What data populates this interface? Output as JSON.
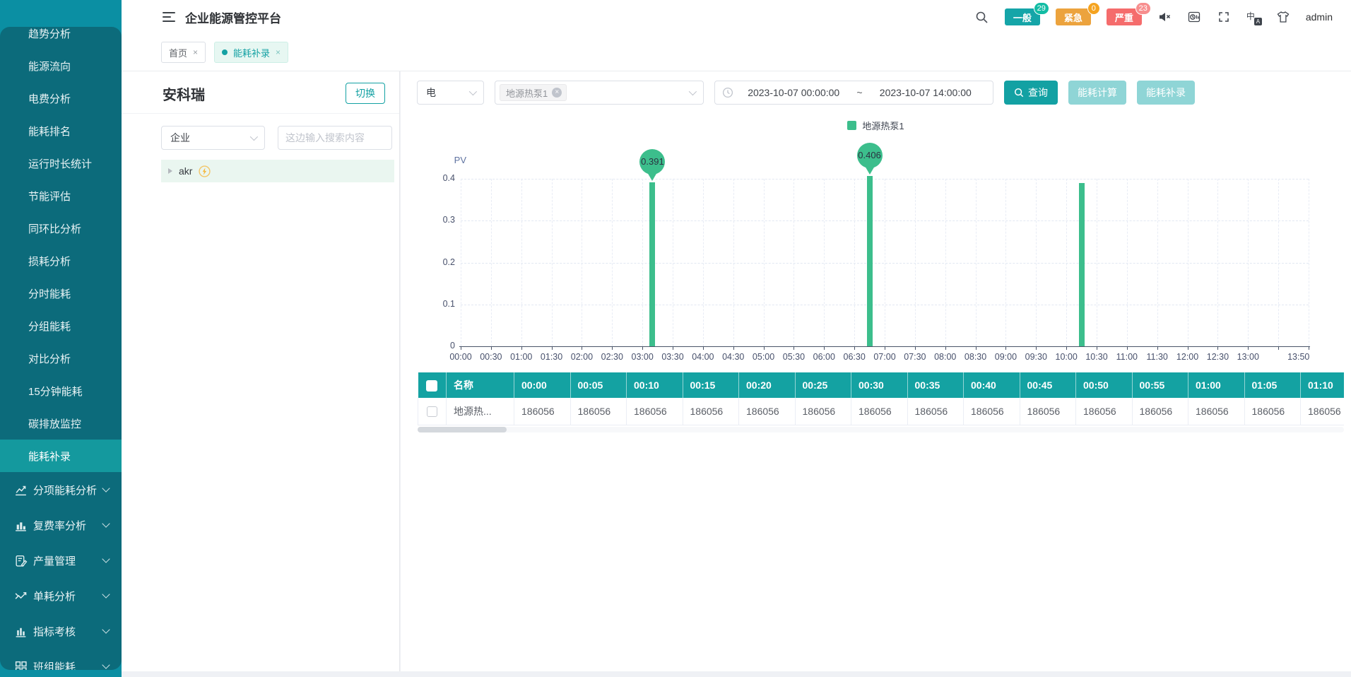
{
  "app": {
    "title": "企业能源管控平台",
    "user": "admin"
  },
  "header": {
    "badges": [
      {
        "label": "一般",
        "count": "29",
        "bg": "#15A5A8",
        "badge_bg": "#12BCA4"
      },
      {
        "label": "紧急",
        "count": "0",
        "bg": "#ECA33D",
        "badge_bg": "#F5A31F"
      },
      {
        "label": "严重",
        "count": "23",
        "bg": "#F56C6C",
        "badge_bg": "#F78E8E"
      }
    ]
  },
  "breadcrumb": {
    "tabs": [
      {
        "label": "首页",
        "active": false
      },
      {
        "label": "能耗补录",
        "active": true
      }
    ]
  },
  "sidebar": {
    "items": [
      {
        "label": "趋势分析"
      },
      {
        "label": "能源流向"
      },
      {
        "label": "电费分析"
      },
      {
        "label": "能耗排名"
      },
      {
        "label": "运行时长统计"
      },
      {
        "label": "节能评估"
      },
      {
        "label": "同环比分析"
      },
      {
        "label": "损耗分析"
      },
      {
        "label": "分时能耗"
      },
      {
        "label": "分组能耗"
      },
      {
        "label": "对比分析"
      },
      {
        "label": "15分钟能耗"
      },
      {
        "label": "碳排放监控"
      },
      {
        "label": "能耗补录",
        "active": true
      }
    ],
    "groups": [
      {
        "label": "分项能耗分析",
        "icon": "line-chart-icon"
      },
      {
        "label": "复费率分析",
        "icon": "bar-chart-icon"
      },
      {
        "label": "产量管理",
        "icon": "clipboard-icon"
      },
      {
        "label": "单耗分析",
        "icon": "scatter-icon"
      },
      {
        "label": "指标考核",
        "icon": "column-chart-icon"
      },
      {
        "label": "班组能耗",
        "icon": "grid-icon"
      }
    ]
  },
  "panel": {
    "title": "安科瑞",
    "switch_label": "切换",
    "type_select_value": "企业",
    "search_placeholder": "这边输入搜索内容",
    "tree_item_label": "akr"
  },
  "filters": {
    "energy_type_value": "电",
    "device_tag": "地源热泵1",
    "date_start": "2023-10-07 00:00:00",
    "date_separator": "~",
    "date_end": "2023-10-07 14:00:00",
    "query_label": "查询",
    "calc_label": "能耗计算",
    "entry_label": "能耗补录"
  },
  "chart_data": {
    "type": "bar",
    "title": "",
    "ylabel": "PV",
    "ylim": [
      0,
      0.4
    ],
    "yticks": [
      0,
      0.1,
      0.2,
      0.3,
      0.4
    ],
    "grid": "dashed",
    "legend_position": "top",
    "x_axis": {
      "start_min": 0,
      "end_min": 840,
      "tick_step_min": 30
    },
    "xticks": [
      {
        "m": 0,
        "label": "00:00"
      },
      {
        "m": 30,
        "label": "00:30"
      },
      {
        "m": 60,
        "label": "01:00"
      },
      {
        "m": 90,
        "label": "01:30"
      },
      {
        "m": 120,
        "label": "02:00"
      },
      {
        "m": 150,
        "label": "02:30"
      },
      {
        "m": 180,
        "label": "03:00"
      },
      {
        "m": 210,
        "label": "03:30"
      },
      {
        "m": 240,
        "label": "04:00"
      },
      {
        "m": 270,
        "label": "04:30"
      },
      {
        "m": 300,
        "label": "05:00"
      },
      {
        "m": 330,
        "label": "05:30"
      },
      {
        "m": 360,
        "label": "06:00"
      },
      {
        "m": 390,
        "label": "06:30"
      },
      {
        "m": 420,
        "label": "07:00"
      },
      {
        "m": 450,
        "label": "07:30"
      },
      {
        "m": 480,
        "label": "08:00"
      },
      {
        "m": 510,
        "label": "08:30"
      },
      {
        "m": 540,
        "label": "09:00"
      },
      {
        "m": 570,
        "label": "09:30"
      },
      {
        "m": 600,
        "label": "10:00"
      },
      {
        "m": 630,
        "label": "10:30"
      },
      {
        "m": 660,
        "label": "11:00"
      },
      {
        "m": 690,
        "label": "11:30"
      },
      {
        "m": 720,
        "label": "12:00"
      },
      {
        "m": 750,
        "label": "12:30"
      },
      {
        "m": 780,
        "label": "13:00"
      },
      {
        "m": 830,
        "label": "13:50"
      }
    ],
    "series": [
      {
        "name": "地源热泵1",
        "color": "#3CBE8C",
        "points": [
          {
            "time": "03:10",
            "minute": 190,
            "value": 0.391,
            "pin_label": "0.391"
          },
          {
            "time": "06:45",
            "minute": 405,
            "value": 0.406,
            "pin_label": "0.406"
          },
          {
            "time": "10:15",
            "minute": 615,
            "value": 0.39
          }
        ]
      }
    ]
  },
  "table": {
    "name_header": "名称",
    "time_headers": [
      "00:00",
      "00:05",
      "00:10",
      "00:15",
      "00:20",
      "00:25",
      "00:30",
      "00:35",
      "00:40",
      "00:45",
      "00:50",
      "00:55",
      "01:00",
      "01:05",
      "01:10"
    ],
    "rows": [
      {
        "name": "地源热...",
        "checked": false,
        "values": [
          "186056",
          "186056",
          "186056",
          "186056",
          "186056",
          "186056",
          "186056",
          "186056",
          "186056",
          "186056",
          "186056",
          "186056",
          "186056",
          "186056",
          "186056"
        ]
      }
    ]
  }
}
